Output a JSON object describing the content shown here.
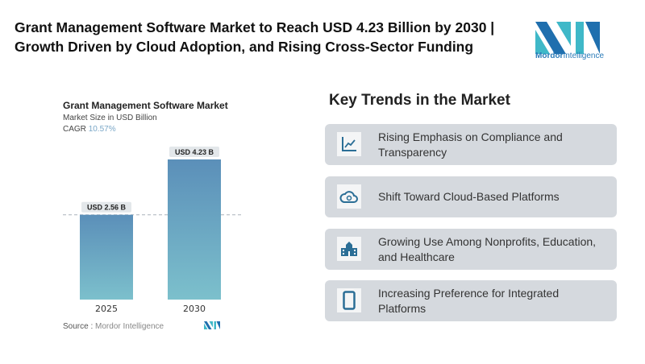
{
  "header": {
    "title": "Grant Management Software Market to Reach USD 4.23 Billion by 2030 | Growth Driven by Cloud Adoption, and Rising Cross-Sector Funding",
    "logo_text_bold": "Mordor",
    "logo_text": "Intelligence"
  },
  "chart_data": {
    "type": "bar",
    "title": "Grant Management Software Market",
    "subtitle": "Market Size in USD Billion",
    "cagr_label": "CAGR",
    "cagr_value": "10.57%",
    "categories": [
      "2025",
      "2030"
    ],
    "values": [
      2.56,
      4.23
    ],
    "data_labels": [
      "USD 2.56 B",
      "USD 4.23 B"
    ],
    "ylim": [
      0,
      4.23
    ],
    "grid": false,
    "colors": {
      "bar_top": "#5b8fb9",
      "bar_bottom": "#7cc0cc",
      "label_bg": "#e3e7ea"
    },
    "source_label": "Source :",
    "source": "Mordor Intelligence"
  },
  "trends": {
    "heading": "Key Trends in the Market",
    "items": [
      {
        "icon": "line-chart-icon",
        "label": "Rising Emphasis on Compliance and Transparency"
      },
      {
        "icon": "cloud-sync-icon",
        "label": "Shift Toward Cloud-Based Platforms"
      },
      {
        "icon": "school-building-icon",
        "label": "Growing Use Among Nonprofits, Education, and Healthcare"
      },
      {
        "icon": "mobile-device-icon",
        "label": "Increasing Preference for Integrated Platforms"
      }
    ]
  },
  "colors": {
    "accent": "#2b6e96",
    "card_bg": "#d5d9de"
  }
}
